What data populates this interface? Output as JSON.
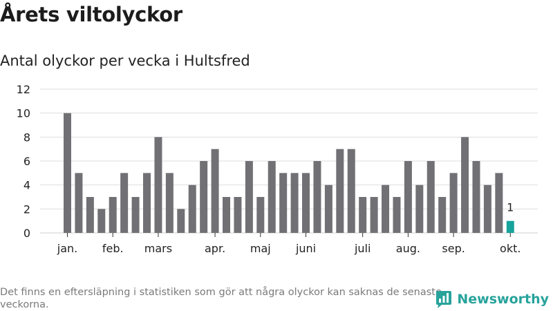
{
  "title": "Årets viltolyckor",
  "subtitle": "Antal olyckor per vecka i Hultsfred",
  "footnote": "Det finns en eftersläpning i statistiken som gör att några olyckor kan saknas de senaste veckorna.",
  "brand": "Newsworthy",
  "colors": {
    "bar": "#717074",
    "highlight": "#15a39c",
    "grid": "#dddddd",
    "brand": "#27a39b"
  },
  "chart_data": {
    "type": "bar",
    "title": "Antal olyckor per vecka i Hultsfred",
    "xlabel": "",
    "ylabel": "",
    "ylim": [
      0,
      12
    ],
    "yticks": [
      0,
      2,
      4,
      6,
      8,
      10,
      12
    ],
    "grid": true,
    "values": [
      10,
      5,
      3,
      2,
      3,
      5,
      3,
      5,
      8,
      5,
      2,
      4,
      6,
      7,
      3,
      3,
      6,
      3,
      6,
      5,
      5,
      5,
      6,
      4,
      7,
      7,
      3,
      3,
      4,
      3,
      6,
      4,
      6,
      3,
      5,
      8,
      6,
      4,
      5,
      1
    ],
    "highlight_index": 39,
    "highlight_label": "1",
    "month_labels": [
      {
        "label": "jan.",
        "at": 0
      },
      {
        "label": "feb.",
        "at": 4
      },
      {
        "label": "mars",
        "at": 8
      },
      {
        "label": "apr.",
        "at": 13
      },
      {
        "label": "maj",
        "at": 17
      },
      {
        "label": "juni",
        "at": 21
      },
      {
        "label": "juli",
        "at": 26
      },
      {
        "label": "aug.",
        "at": 30
      },
      {
        "label": "sep.",
        "at": 34
      },
      {
        "label": "okt.",
        "at": 39
      }
    ]
  }
}
